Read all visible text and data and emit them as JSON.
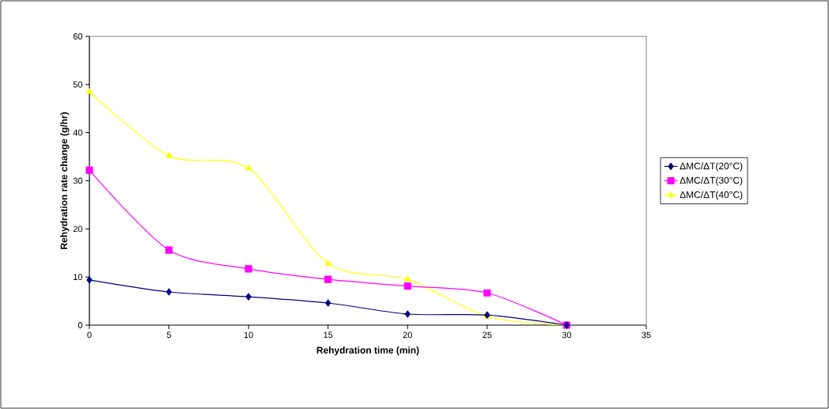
{
  "chart_data": {
    "type": "line",
    "xlabel": "Rehydration time (min)",
    "ylabel": "Rehydration rate change (g/hr)",
    "x": [
      0,
      5,
      10,
      15,
      20,
      25,
      30
    ],
    "series": [
      {
        "name": "ΔMC/ΔT(20°C)",
        "color": "#000080",
        "marker": "diamond",
        "values": [
          9.4,
          6.9,
          5.9,
          4.6,
          2.3,
          2.1,
          0
        ]
      },
      {
        "name": "ΔMC/ΔT(30°C)",
        "color": "#ff00ff",
        "marker": "square",
        "values": [
          32.2,
          15.6,
          11.7,
          9.5,
          8.1,
          6.7,
          0
        ]
      },
      {
        "name": "ΔMC/ΔT(40°C)",
        "color": "#ffff00",
        "marker": "triangle",
        "values": [
          48.5,
          35.2,
          32.6,
          12.8,
          9.5,
          1.8,
          0
        ]
      }
    ],
    "xlim": [
      0,
      35
    ],
    "xticks": [
      0,
      5,
      10,
      15,
      20,
      25,
      30,
      35
    ],
    "ylim": [
      0,
      60
    ],
    "yticks": [
      0,
      10,
      20,
      30,
      40,
      50,
      60
    ],
    "grid": false,
    "legend": "right"
  }
}
